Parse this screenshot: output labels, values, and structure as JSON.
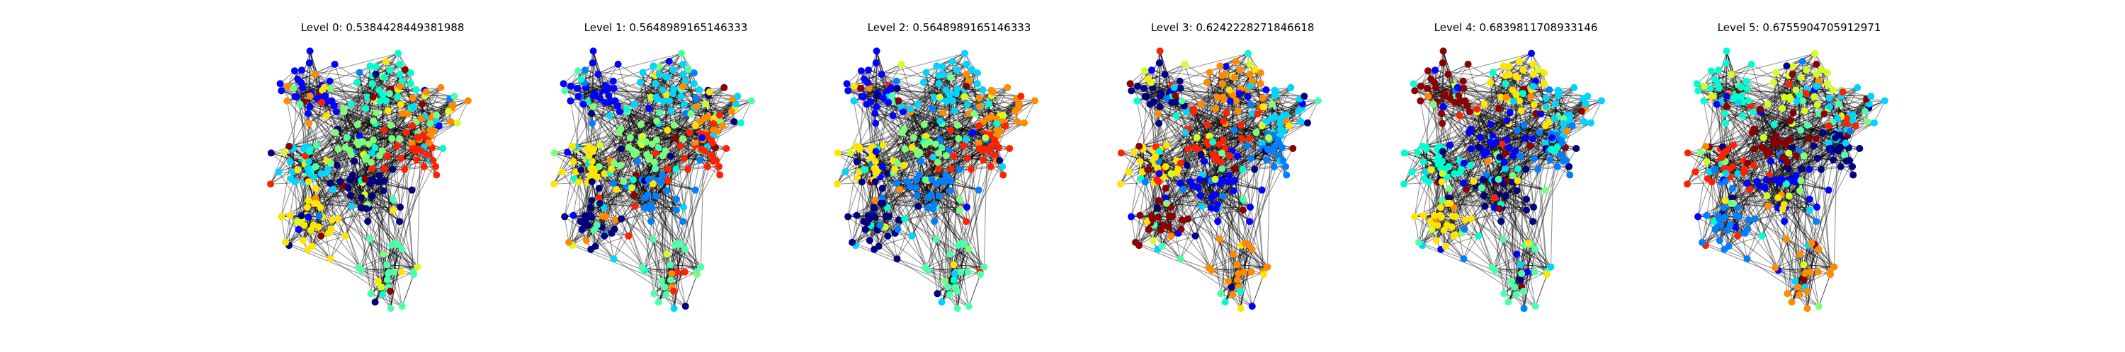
{
  "panels": [
    {
      "title": "Level 0: 0.5384428449381988"
    },
    {
      "title": "Level 1: 0.5648989165146333"
    },
    {
      "title": "Level 2: 0.5648989165146333"
    },
    {
      "title": "Level 3: 0.6242228271846618"
    },
    {
      "title": "Level 4: 0.6839811708933146"
    },
    {
      "title": "Level 5: 0.6755904705912971"
    }
  ],
  "style": {
    "edge_color": "#000000",
    "node_palette": [
      "#00007f",
      "#0000ff",
      "#0080ff",
      "#00d4ff",
      "#00ffd0",
      "#4dffaa",
      "#7dff7a",
      "#d4ff23",
      "#ffe600",
      "#ff8c00",
      "#ff2200",
      "#8b0000"
    ]
  }
}
